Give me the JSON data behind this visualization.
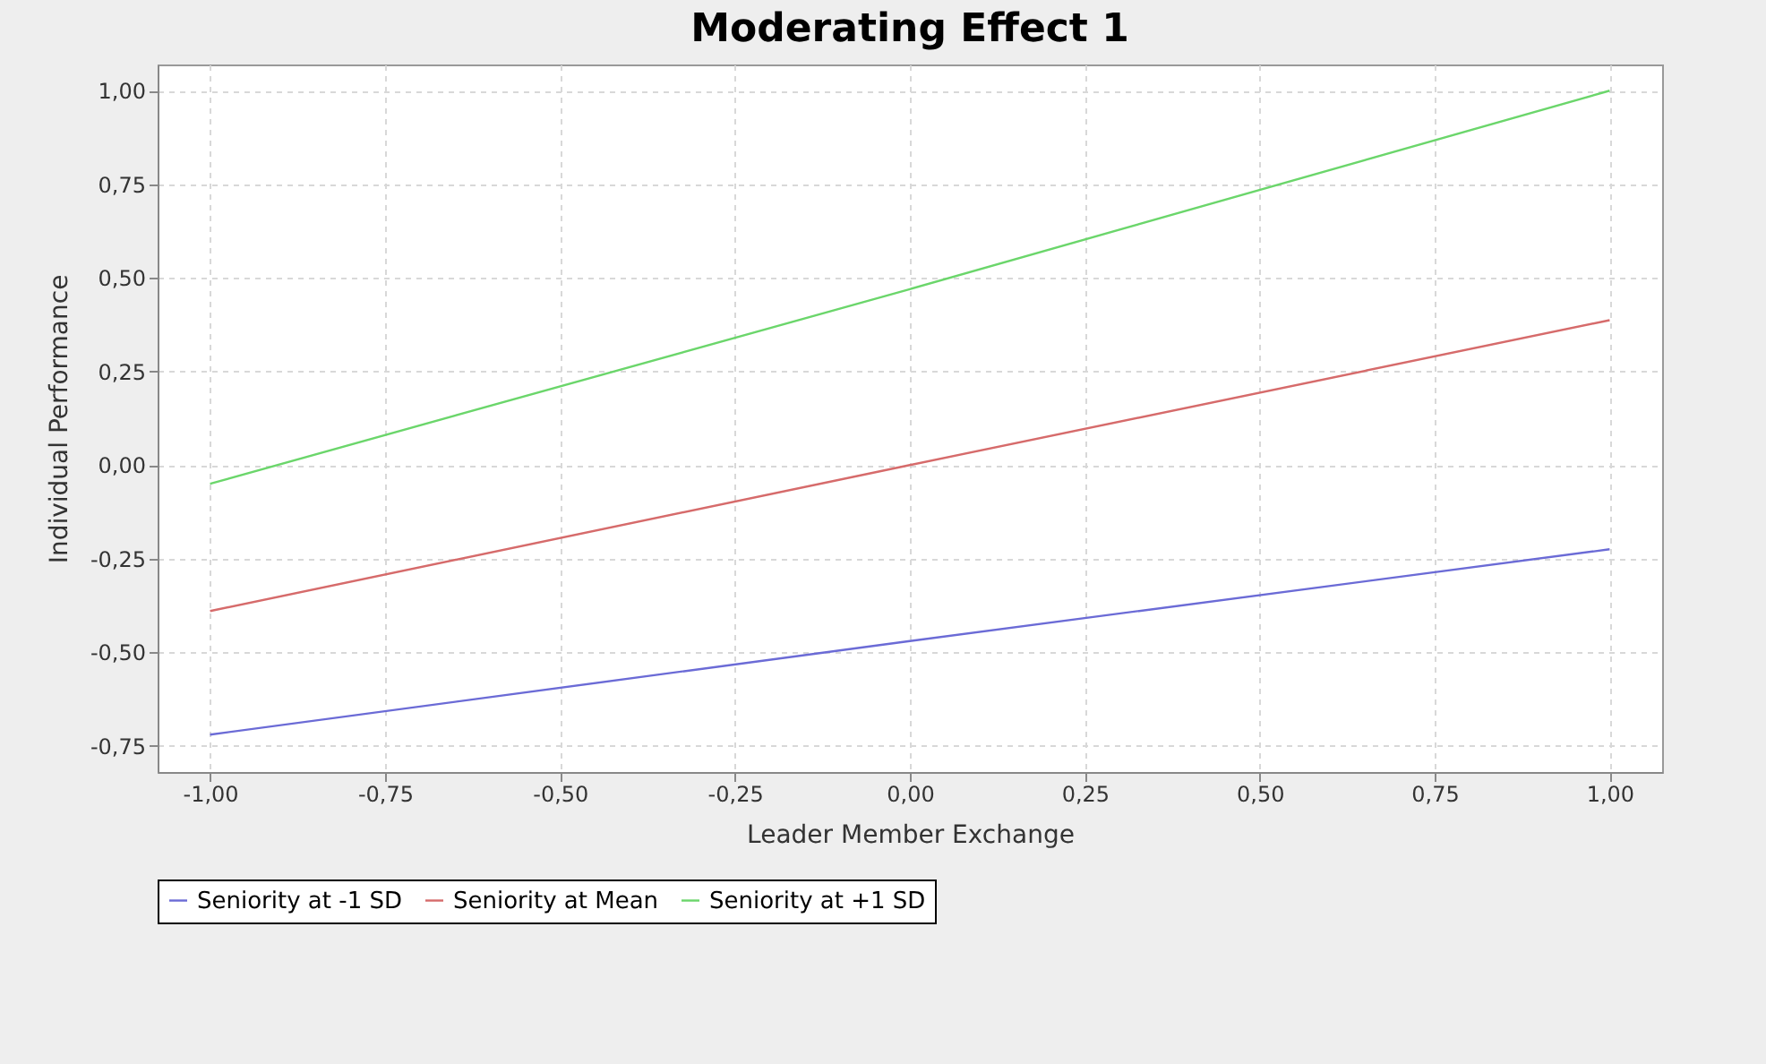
{
  "chart_data": {
    "type": "line",
    "title": "Moderating Effect 1",
    "xlabel": "Leader Member Exchange",
    "ylabel": "Individual Performance",
    "x": [
      -1,
      0,
      1
    ],
    "series": [
      {
        "name": "Seniority at -1 SD",
        "color": "#6b6bd6",
        "values": [
          -0.72,
          -0.47,
          -0.225
        ]
      },
      {
        "name": "Seniority at Mean",
        "color": "#d66b6b",
        "values": [
          -0.39,
          0.0,
          0.387
        ]
      },
      {
        "name": "Seniority at +1 SD",
        "color": "#6bd66b",
        "values": [
          -0.05,
          0.47,
          1.0
        ]
      }
    ],
    "xlim": [
      -1.075,
      1.075
    ],
    "xticks": [
      {
        "value": -1,
        "label": "-1,00"
      },
      {
        "value": -0.75,
        "label": "-0,75"
      },
      {
        "value": -0.5,
        "label": "-0,50"
      },
      {
        "value": -0.25,
        "label": "-0,25"
      },
      {
        "value": 0,
        "label": "0,00"
      },
      {
        "value": 0.25,
        "label": "0,25"
      },
      {
        "value": 0.5,
        "label": "0,50"
      },
      {
        "value": 0.75,
        "label": "0,75"
      },
      {
        "value": 1,
        "label": "1,00"
      }
    ],
    "ylim": [
      -0.82,
      1.07
    ],
    "yticks": [
      {
        "value": -0.75,
        "label": "-0,75"
      },
      {
        "value": -0.5,
        "label": "-0,50"
      },
      {
        "value": -0.25,
        "label": "-0,25"
      },
      {
        "value": 0,
        "label": "0,00"
      },
      {
        "value": 0.25,
        "label": "0,25"
      },
      {
        "value": 0.5,
        "label": "0,50"
      },
      {
        "value": 0.75,
        "label": "0,75"
      },
      {
        "value": 1,
        "label": "1,00"
      }
    ],
    "grid": true,
    "legend": "bottom",
    "marker": "none",
    "line_style": "solid"
  }
}
